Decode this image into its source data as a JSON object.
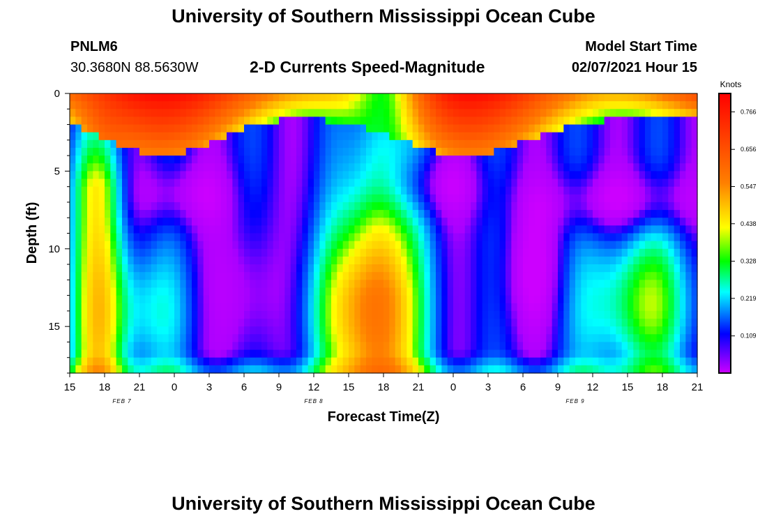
{
  "header": {
    "title_top": "University of Southern Mississippi Ocean Cube",
    "title_bottom": "University of Southern Mississippi Ocean Cube",
    "station_id": "PNLM6",
    "station_coords": "30.3680N 88.5630W",
    "chart_title": "2-D Currents Speed-Magnitude",
    "model_label": "Model Start Time",
    "model_time": "02/07/2021 Hour 15"
  },
  "chart_data": {
    "type": "heatmap",
    "title": "2-D Currents Speed-Magnitude",
    "xlabel": "Forecast Time(Z)",
    "ylabel": "Depth (ft)",
    "x_tick_labels": [
      "15",
      "18",
      "21",
      "0",
      "3",
      "6",
      "9",
      "12",
      "15",
      "18",
      "21",
      "0",
      "3",
      "6",
      "9",
      "12",
      "15",
      "18",
      "21"
    ],
    "date_labels": [
      {
        "text": "FEB 7",
        "hour": 4.5
      },
      {
        "text": "FEB 8",
        "hour": 21
      },
      {
        "text": "FEB 9",
        "hour": 43.5
      }
    ],
    "x_range_hours": [
      0,
      54
    ],
    "y_ticks": [
      0,
      5,
      10,
      15
    ],
    "y_range_ft": [
      0,
      18
    ],
    "colorbar": {
      "label": "Knots",
      "ticks": [
        0.766,
        0.656,
        0.547,
        0.438,
        0.328,
        0.219,
        0.109
      ],
      "range": [
        0.0,
        0.82
      ],
      "colors": [
        "#cc00ff",
        "#0000ff",
        "#00ffff",
        "#00ff00",
        "#ffff00",
        "#ff8000",
        "#ff0000"
      ]
    },
    "grid": false
  }
}
